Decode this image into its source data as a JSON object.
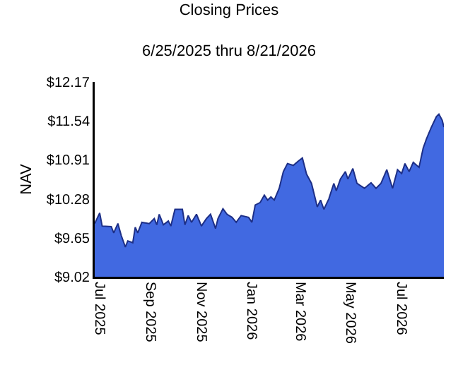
{
  "chart_data": {
    "type": "area",
    "title": "Closing Prices",
    "subtitle": "6/25/2025 thru 8/21/2026",
    "ylabel": "NAV",
    "x": [
      "2025-06-25",
      "2025-07-01",
      "2025-07-04",
      "2025-07-15",
      "2025-07-18",
      "2025-07-23",
      "2025-07-27",
      "2025-08-01",
      "2025-08-04",
      "2025-08-10",
      "2025-08-13",
      "2025-08-16",
      "2025-08-21",
      "2025-08-30",
      "2025-09-05",
      "2025-09-08",
      "2025-09-11",
      "2025-09-16",
      "2025-09-22",
      "2025-09-25",
      "2025-09-30",
      "2025-10-09",
      "2025-10-12",
      "2025-10-16",
      "2025-10-20",
      "2025-10-26",
      "2025-11-01",
      "2025-11-07",
      "2025-11-12",
      "2025-11-18",
      "2025-11-21",
      "2025-11-27",
      "2025-12-02",
      "2025-12-08",
      "2025-12-13",
      "2025-12-19",
      "2025-12-28",
      "2026-01-01",
      "2026-01-05",
      "2026-01-11",
      "2026-01-16",
      "2026-01-20",
      "2026-01-24",
      "2026-01-28",
      "2026-02-03",
      "2026-02-08",
      "2026-02-13",
      "2026-02-20",
      "2026-02-26",
      "2026-03-03",
      "2026-03-08",
      "2026-03-14",
      "2026-03-21",
      "2026-03-25",
      "2026-03-29",
      "2026-04-04",
      "2026-04-10",
      "2026-04-13",
      "2026-04-18",
      "2026-04-24",
      "2026-04-27",
      "2026-05-03",
      "2026-05-08",
      "2026-05-17",
      "2026-05-25",
      "2026-05-31",
      "2026-06-06",
      "2026-06-13",
      "2026-06-20",
      "2026-06-26",
      "2026-07-01",
      "2026-07-05",
      "2026-07-10",
      "2026-07-15",
      "2026-07-22",
      "2026-07-27",
      "2026-07-31",
      "2026-08-06",
      "2026-08-12",
      "2026-08-15",
      "2026-08-19",
      "2026-08-21"
    ],
    "series": [
      {
        "color": "#4169e1",
        "values": [
          9.88,
          10.05,
          9.84,
          9.83,
          9.73,
          9.88,
          9.69,
          9.5,
          9.6,
          9.57,
          9.82,
          9.73,
          9.9,
          9.88,
          9.96,
          9.86,
          10.03,
          9.86,
          9.92,
          9.84,
          10.11,
          10.11,
          9.86,
          10.01,
          9.9,
          10.03,
          9.84,
          9.96,
          10.03,
          9.8,
          9.96,
          10.12,
          10.03,
          9.98,
          9.9,
          10.01,
          9.98,
          9.9,
          10.18,
          10.22,
          10.34,
          10.26,
          10.31,
          10.26,
          10.45,
          10.72,
          10.85,
          10.82,
          10.89,
          10.94,
          10.68,
          10.53,
          10.15,
          10.26,
          10.11,
          10.28,
          10.53,
          10.41,
          10.6,
          10.72,
          10.6,
          10.77,
          10.53,
          10.45,
          10.54,
          10.45,
          10.53,
          10.75,
          10.45,
          10.75,
          10.69,
          10.85,
          10.72,
          10.87,
          10.79,
          11.1,
          11.25,
          11.44,
          11.61,
          11.65,
          11.55,
          11.44
        ]
      }
    ],
    "xlim": [
      "2025-06-25",
      "2026-08-21"
    ],
    "xticks": [
      {
        "value": "2025-07-01",
        "label": "Jul 2025"
      },
      {
        "value": "2025-09-01",
        "label": "Sep 2025"
      },
      {
        "value": "2025-11-01",
        "label": "Nov 2025"
      },
      {
        "value": "2026-01-01",
        "label": "Jan 2026"
      },
      {
        "value": "2026-03-01",
        "label": "Mar 2026"
      },
      {
        "value": "2026-05-01",
        "label": "May 2026"
      },
      {
        "value": "2026-07-01",
        "label": "Jul 2026"
      }
    ],
    "ylim": [
      9.02,
      12.17
    ],
    "yticks": [
      {
        "value": 9.02,
        "label": "$9.02"
      },
      {
        "value": 9.65,
        "label": "$9.65"
      },
      {
        "value": 10.28,
        "label": "$10.28"
      },
      {
        "value": 10.91,
        "label": "$10.91"
      },
      {
        "value": 11.54,
        "label": "$11.54"
      },
      {
        "value": 12.17,
        "label": "$12.17"
      }
    ],
    "grid": false
  }
}
